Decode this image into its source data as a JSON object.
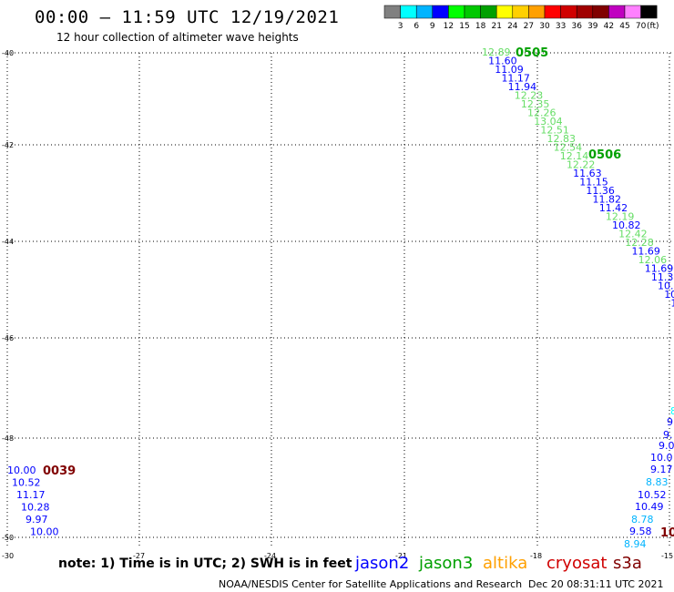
{
  "header": {
    "title": "00:00 – 11:59 UTC 12/19/2021",
    "subtitle": "12 hour collection of altimeter wave heights"
  },
  "legend": {
    "unit": "(ft)",
    "colors": [
      "#808080",
      "#00ffff",
      "#00b4ff",
      "#0000ff",
      "#00ff00",
      "#00c800",
      "#00a000",
      "#ffff00",
      "#ffd000",
      "#ffa000",
      "#ff0000",
      "#d00000",
      "#a00000",
      "#800000",
      "#c000c0",
      "#ff80ff",
      "#000000"
    ],
    "labels": [
      "3",
      "6",
      "9",
      "12",
      "15",
      "18",
      "21",
      "24",
      "27",
      "30",
      "33",
      "36",
      "39",
      "42",
      "45",
      "70"
    ]
  },
  "axes": {
    "y_labels": [
      "-40",
      "-42",
      "-44",
      "-46",
      "-48",
      "-50"
    ],
    "x_labels": [
      "-30",
      "-27",
      "-24",
      "-21",
      "-18",
      "-15"
    ]
  },
  "track_labels": [
    {
      "text": "0505",
      "color": "#00a000"
    },
    {
      "text": "0506",
      "color": "#00a000"
    },
    {
      "text": "0039",
      "color": "#800000"
    },
    {
      "text": "10",
      "color": "#800000"
    }
  ],
  "readings": {
    "track1": [
      "12.89",
      "11.60",
      "11.09",
      "11.17",
      "11.94",
      "12.23",
      "12.35",
      "12.26",
      "13.04",
      "12.51",
      "12.83",
      "12.54",
      "12.14",
      "12.22",
      "11.63",
      "11.15",
      "11.36",
      "11.82",
      "11.42",
      "12.19",
      "10.82",
      "12.42",
      "12.28",
      "11.69",
      "12.06",
      "11.69",
      "11.33",
      "10.8",
      "10.",
      "10"
    ],
    "track2": [
      "10.00",
      "10.52",
      "11.17",
      "10.28",
      "9.97",
      "10.00"
    ],
    "track3": [
      "8",
      "9.",
      "9.",
      "9.0",
      "10.0",
      "9.17",
      "8.83",
      "10.52",
      "10.49",
      "8.78",
      "9.58",
      "8.94"
    ]
  },
  "note": "note: 1) Time is in UTC; 2) SWH is in feet",
  "satellites": [
    {
      "name": "jason2",
      "color": "#0000ff"
    },
    {
      "name": "jason3",
      "color": "#00a000"
    },
    {
      "name": "altika",
      "color": "#ffa000"
    },
    {
      "name": "cryosat",
      "color": "#d00000"
    },
    {
      "name": "s3a",
      "color": "#800000"
    }
  ],
  "footer": {
    "credit": "NOAA/NESDIS Center for Satellite Applications and Research",
    "timestamp": "Dec 20 08:31:11 UTC 2021"
  }
}
